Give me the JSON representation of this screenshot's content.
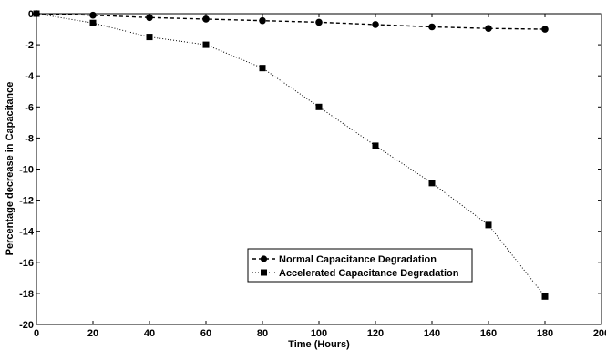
{
  "chart_data": {
    "type": "line",
    "xlabel": "Time (Hours)",
    "ylabel": "Percentage decrease in Capacitance",
    "xlim": [
      0,
      200
    ],
    "ylim": [
      -20,
      0
    ],
    "x_ticks": [
      "0",
      "20",
      "40",
      "60",
      "80",
      "100",
      "120",
      "140",
      "160",
      "180",
      "200"
    ],
    "y_ticks": [
      "0",
      "-2",
      "-4",
      "-6",
      "-8",
      "-10",
      "-12",
      "-14",
      "-16",
      "-18",
      "-20"
    ],
    "grid": false,
    "legend_position": "lower-center",
    "series": [
      {
        "name": "Normal Capacitance Degradation",
        "x": [
          0,
          20,
          40,
          60,
          80,
          100,
          120,
          140,
          160,
          180
        ],
        "y": [
          0,
          -0.1,
          -0.25,
          -0.35,
          -0.45,
          -0.55,
          -0.7,
          -0.85,
          -0.95,
          -1.0
        ],
        "marker": "circle",
        "line_style": "dashed",
        "color": "#000000"
      },
      {
        "name": "Accelerated Capacitance Degradation",
        "x": [
          0,
          20,
          40,
          60,
          80,
          100,
          120,
          140,
          160,
          180
        ],
        "y": [
          0,
          -0.6,
          -1.5,
          -2.0,
          -3.5,
          -6.0,
          -8.5,
          -10.9,
          -13.6,
          -18.2
        ],
        "marker": "square",
        "line_style": "dotted",
        "color": "#000000"
      }
    ]
  }
}
